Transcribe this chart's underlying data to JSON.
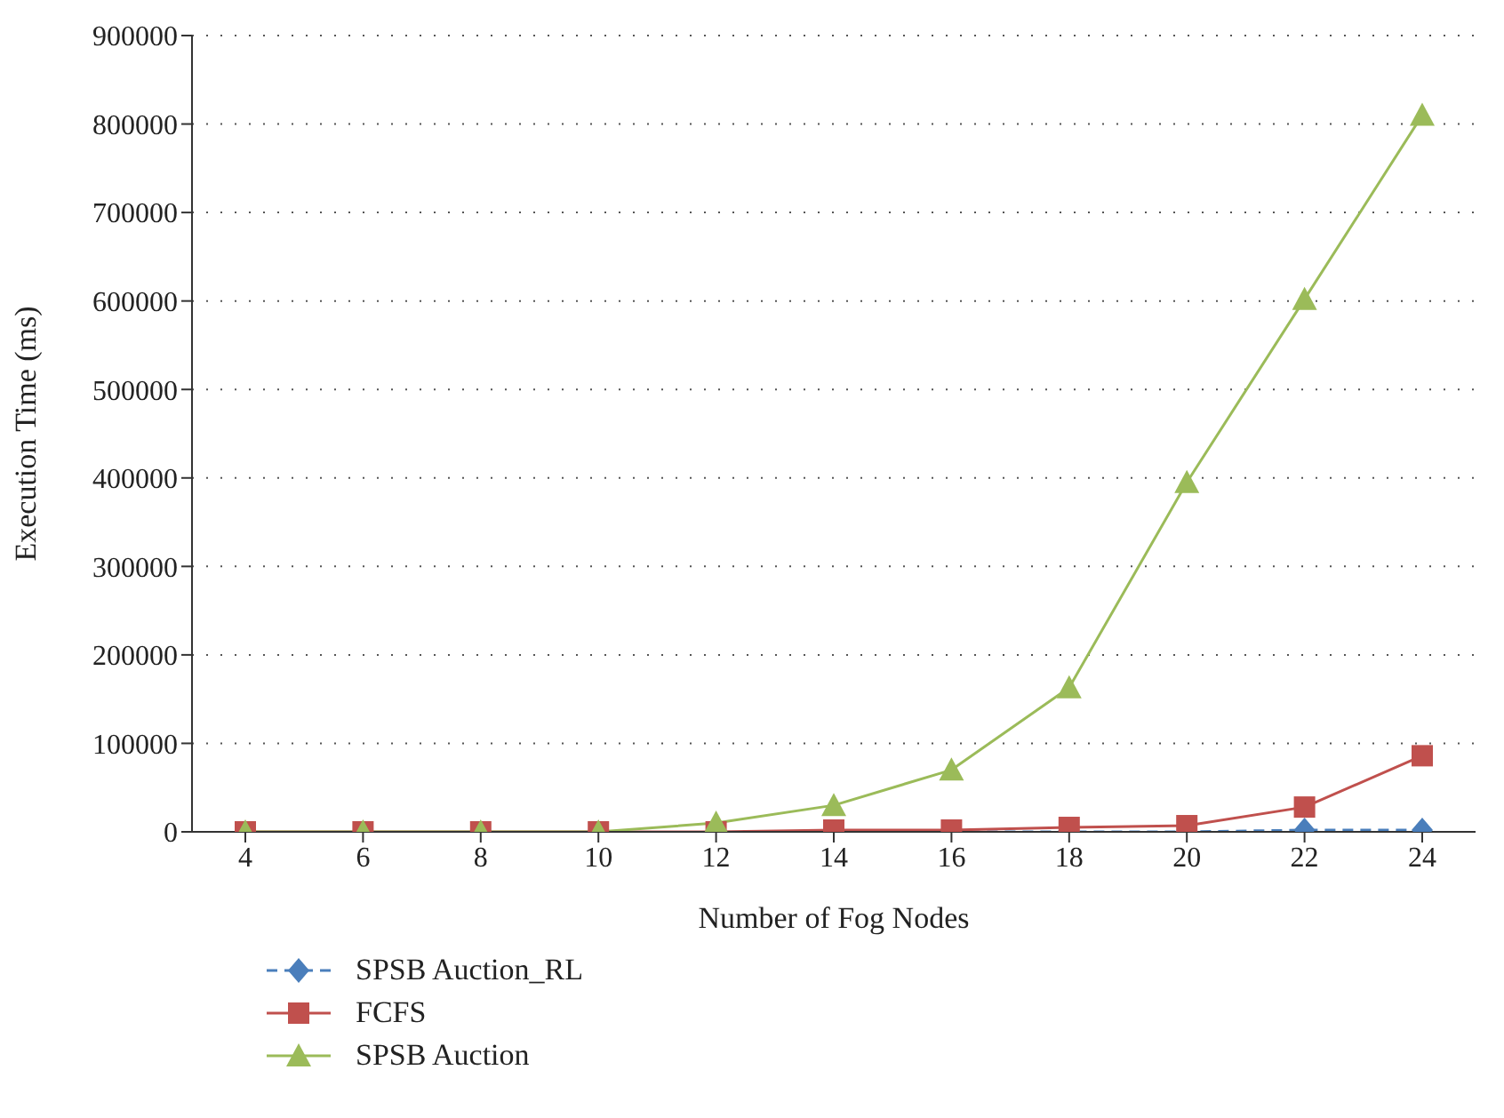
{
  "chart_data": {
    "type": "line",
    "xlabel": "Number of Fog Nodes",
    "ylabel": "Execution Time (ms)",
    "categories": [
      "4",
      "6",
      "8",
      "10",
      "12",
      "14",
      "16",
      "18",
      "20",
      "22",
      "24"
    ],
    "series": [
      {
        "name": "SPSB Auction_RL",
        "color": "#4a7ebb",
        "marker": "diamond",
        "line_style": "dashed",
        "values": [
          null,
          null,
          null,
          null,
          null,
          null,
          0,
          0,
          0,
          2000,
          2000
        ]
      },
      {
        "name": "FCFS",
        "color": "#c0504d",
        "marker": "square",
        "line_style": "solid",
        "values": [
          0,
          0,
          0,
          0,
          0,
          2000,
          2000,
          5000,
          7000,
          28000,
          86000
        ]
      },
      {
        "name": "SPSB Auction",
        "color": "#9bbb59",
        "marker": "triangle",
        "line_style": "solid",
        "values": [
          0,
          0,
          0,
          0,
          10000,
          30000,
          70000,
          163000,
          395000,
          602000,
          810000
        ]
      }
    ],
    "ylim": [
      0,
      900000
    ],
    "yticks": [
      0,
      100000,
      200000,
      300000,
      400000,
      500000,
      600000,
      700000,
      800000,
      900000
    ],
    "grid": "y",
    "legend": "bottom left"
  }
}
